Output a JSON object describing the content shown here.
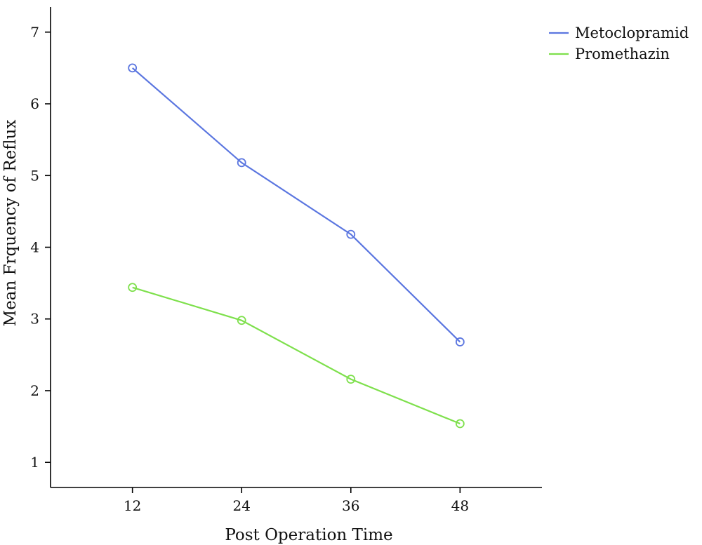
{
  "chart_data": {
    "type": "line",
    "title": "",
    "xlabel": "Post Operation Time",
    "ylabel": "Mean Frquency of Reflux",
    "categories": [
      "12",
      "24",
      "36",
      "48"
    ],
    "x": [
      12,
      24,
      36,
      48
    ],
    "xlim": [
      3,
      57
    ],
    "ylim": [
      0.65,
      7.35
    ],
    "yticks": [
      1,
      2,
      3,
      4,
      5,
      6,
      7
    ],
    "grid": false,
    "legend_position": "top-right",
    "series": [
      {
        "name": "Metoclopramid",
        "color": "#5b76e0",
        "values": [
          6.5,
          5.18,
          4.18,
          2.68
        ],
        "marker": "open-circle"
      },
      {
        "name": "Promethazin",
        "color": "#7ee04c",
        "values": [
          3.44,
          2.98,
          2.16,
          1.54
        ],
        "marker": "open-circle"
      }
    ]
  }
}
